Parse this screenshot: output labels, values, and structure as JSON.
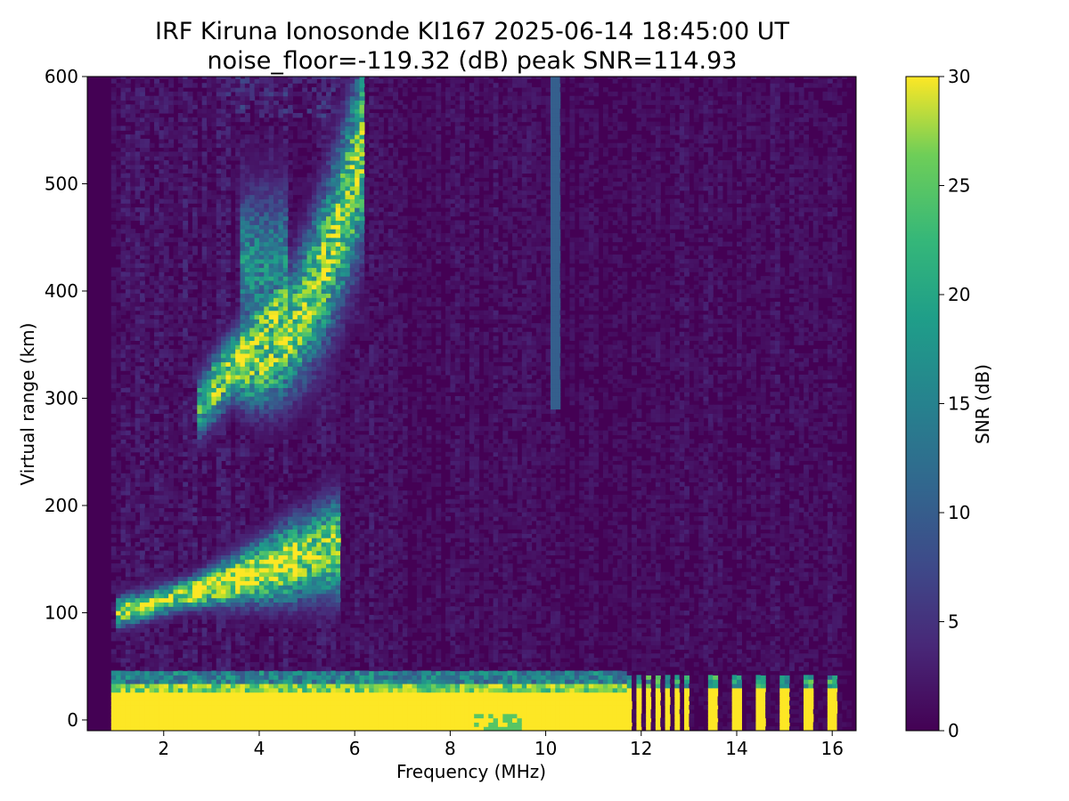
{
  "chart_data": {
    "type": "heatmap",
    "title": "IRF Kiruna Ionosonde KI167 2025-06-14 18:45:00  UT",
    "subtitle": "noise_floor=-119.32 (dB) peak SNR=114.93",
    "xlabel": "Frequency (MHz)",
    "ylabel": "Virtual range (km)",
    "xlim": [
      0.4,
      16.5
    ],
    "ylim": [
      -10,
      600
    ],
    "x_ticks": [
      2,
      4,
      6,
      8,
      10,
      12,
      14,
      16
    ],
    "x_tick_labels": [
      "2",
      "4",
      "6",
      "8",
      "10",
      "12",
      "14",
      "16"
    ],
    "y_ticks": [
      0,
      100,
      200,
      300,
      400,
      500,
      600
    ],
    "y_tick_labels": [
      "0",
      "100",
      "200",
      "300",
      "400",
      "500",
      "600"
    ],
    "data_freq_range_mhz": [
      0.9,
      16.4
    ],
    "colormap": "viridis",
    "colorbar": {
      "label": "SNR (dB)",
      "range": [
        0,
        30
      ],
      "ticks": [
        0,
        5,
        10,
        15,
        20,
        25,
        30
      ],
      "tick_labels": [
        "0",
        "5",
        "10",
        "15",
        "20",
        "25",
        "30"
      ]
    },
    "features": [
      {
        "kind": "ground_clutter",
        "x_range": [
          0.9,
          11.7
        ],
        "y_range": [
          -10,
          45
        ],
        "snr": 30
      },
      {
        "kind": "E_trace",
        "x_range": [
          1.0,
          5.7
        ],
        "y_range": [
          95,
          185
        ],
        "snr_peak": 30
      },
      {
        "kind": "F_trace",
        "x_range": [
          2.7,
          6.2
        ],
        "y_range": [
          270,
          540
        ],
        "snr_peak": 30
      },
      {
        "kind": "interference_line",
        "x": 10.2,
        "y_range": [
          290,
          600
        ],
        "snr": 9
      }
    ],
    "pulse_frequencies_mhz": [
      11.75,
      11.95,
      12.15,
      12.35,
      12.55,
      12.75,
      12.95,
      13.5,
      14.0,
      14.5,
      15.0,
      15.5,
      16.0
    ],
    "grid": false,
    "legend": "none"
  },
  "colors": {
    "background": "#ffffff",
    "viridis_low": "#440154",
    "viridis_mid": "#21918c",
    "viridis_high": "#fde725"
  }
}
